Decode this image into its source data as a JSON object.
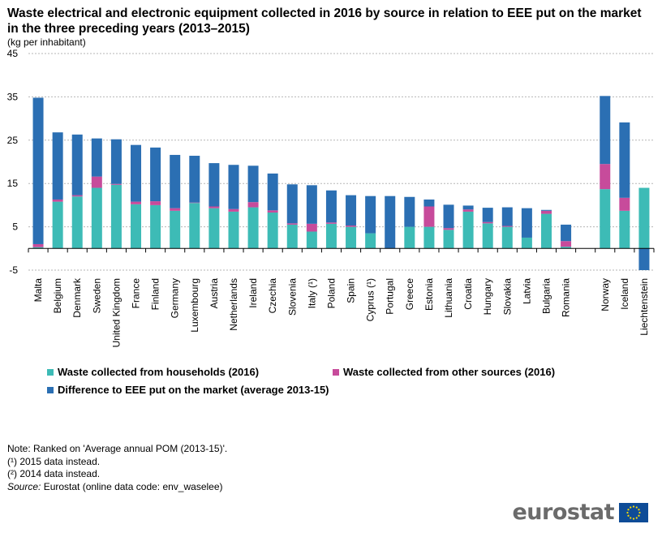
{
  "chart_data": {
    "type": "bar",
    "stacked": true,
    "title": "Waste electrical and electronic equipment collected in 2016 by source in relation to EEE put on the market in the three preceding years (2013–2015)",
    "subtitle": "(kg per inhabitant)",
    "ylim": [
      -5,
      45
    ],
    "yticks": [
      -5,
      5,
      15,
      25,
      35,
      45
    ],
    "grid": true,
    "categories": [
      "Malta",
      "Belgium",
      "Denmark",
      "Sweden",
      "United Kingdom",
      "France",
      "Finland",
      "Germany",
      "Luxembourg",
      "Austria",
      "Netherlands",
      "Ireland",
      "Czechia",
      "Slovenia",
      "Italy (¹)",
      "Poland",
      "Spain",
      "Cyprus (¹)",
      "Portugal",
      "Greece",
      "Estonia",
      "Lithuania",
      "Croatia",
      "Hungary",
      "Slovakia",
      "Latvia",
      "Bulgaria",
      "Romania",
      "",
      "Norway",
      "Iceland",
      "Liechtenstein"
    ],
    "series": [
      {
        "name": "Waste collected from households (2016)",
        "color": "#3dbbb6",
        "values": [
          0.3,
          10.8,
          12.0,
          14.0,
          14.7,
          10.2,
          10.0,
          8.7,
          10.5,
          9.3,
          8.5,
          9.5,
          8.3,
          5.5,
          3.9,
          5.7,
          5.0,
          3.5,
          0.0,
          5.0,
          5.0,
          4.3,
          8.5,
          5.8,
          5.0,
          2.5,
          8.0,
          0.4,
          null,
          13.7,
          8.7,
          14.0
        ]
      },
      {
        "name": "Waste collected from other sources (2016)",
        "color": "#c74b9b",
        "values": [
          0.7,
          0.5,
          0.3,
          2.6,
          0.2,
          0.6,
          0.9,
          0.6,
          0.1,
          0.4,
          0.6,
          1.2,
          0.5,
          0.3,
          1.8,
          0.3,
          0.3,
          0.0,
          0.0,
          0.0,
          4.7,
          0.4,
          0.5,
          0.3,
          0.2,
          0.0,
          0.7,
          1.3,
          null,
          5.8,
          3.0,
          0.0
        ]
      },
      {
        "name": "Difference to EEE put on the market (average 2013-15)",
        "color": "#2b6fb3",
        "values": [
          33.8,
          15.5,
          14.0,
          8.8,
          10.3,
          13.1,
          12.4,
          12.3,
          10.8,
          10.0,
          10.2,
          8.4,
          8.5,
          9.0,
          8.9,
          7.4,
          7.0,
          8.6,
          12.1,
          6.9,
          1.6,
          5.4,
          0.9,
          3.3,
          4.3,
          6.8,
          0.2,
          3.8,
          null,
          15.7,
          17.4,
          -5.0
        ]
      }
    ]
  },
  "notes": {
    "line1": "Note: Ranked on 'Average annual POM (2013-15)'.",
    "line2": "(¹) 2015 data instead.",
    "line3": "(²) 2014 data instead.",
    "source_label": "Source:",
    "source_text": " Eurostat (online data code: env_waselee)"
  },
  "logo": {
    "text": "eurostat",
    "flag_color": "#0e4c97",
    "star_color": "#ffdd00"
  }
}
